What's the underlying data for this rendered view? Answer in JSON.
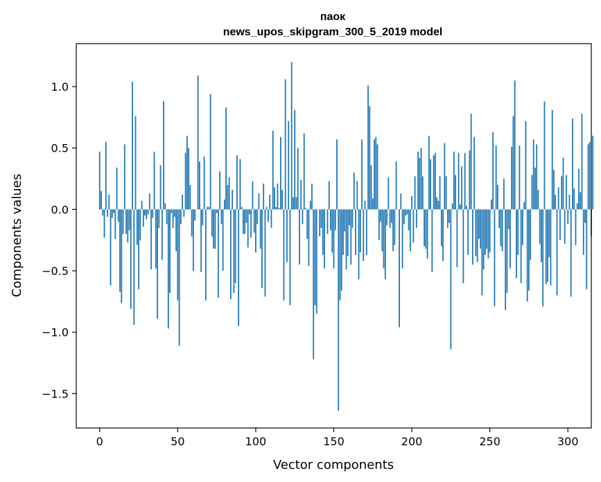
{
  "chart_data": {
    "type": "bar",
    "title": "паок",
    "subtitle": "news_upos_skipgram_300_5_2019 model",
    "xlabel": "Vector components",
    "ylabel": "Components values",
    "xlim": [
      -15,
      315
    ],
    "ylim": [
      -1.78,
      1.35
    ],
    "x_ticks": [
      0,
      50,
      100,
      150,
      200,
      250,
      300
    ],
    "x_tick_labels": [
      "0",
      "50",
      "100",
      "150",
      "200",
      "250",
      "300"
    ],
    "y_ticks": [
      -1.5,
      -1.0,
      -0.5,
      0.0,
      0.5,
      1.0
    ],
    "y_tick_labels": [
      "−1.5",
      "−1.0",
      "−0.5",
      "0.0",
      "0.5",
      "1.0"
    ],
    "grid": false,
    "legend": "none",
    "bar_color": "#1f77b4",
    "values": [
      0.47,
      0.15,
      -0.05,
      -0.23,
      0.55,
      -0.06,
      0.12,
      -0.62,
      -0.07,
      -0.03,
      -0.24,
      0.34,
      -0.1,
      -0.67,
      -0.76,
      -0.2,
      0.53,
      -0.2,
      -0.27,
      -0.17,
      -0.81,
      1.04,
      -0.94,
      0.76,
      -0.29,
      -0.65,
      -0.25,
      0.07,
      -0.14,
      -0.05,
      -0.08,
      -0.04,
      0.13,
      -0.49,
      -0.07,
      0.47,
      -0.48,
      -0.89,
      -0.15,
      0.36,
      -0.41,
      0.88,
      0.05,
      -0.12,
      -0.97,
      -0.68,
      -0.03,
      -0.15,
      -0.06,
      -0.34,
      -0.74,
      -1.11,
      -0.12,
      0.12,
      -0.06,
      0.46,
      0.6,
      0.5,
      0.2,
      -0.22,
      -0.5,
      -0.09,
      0.0,
      1.09,
      0.39,
      -0.51,
      -0.13,
      0.43,
      -0.74,
      0.02,
      0.02,
      0.94,
      -0.22,
      -0.32,
      -0.32,
      -0.03,
      -0.72,
      0.31,
      -0.12,
      -0.5,
      0.08,
      0.83,
      0.2,
      0.26,
      -0.73,
      0.16,
      -0.68,
      -0.6,
      0.44,
      -0.95,
      0.41,
      0.02,
      -0.2,
      -0.2,
      -0.11,
      -0.31,
      -0.04,
      -0.23,
      0.23,
      -0.19,
      -0.35,
      -0.12,
      0.13,
      -0.32,
      -0.64,
      0.21,
      -0.71,
      0.02,
      -0.1,
      0.12,
      -0.15,
      0.64,
      0.18,
      0.02,
      0.21,
      0.01,
      0.59,
      0.16,
      -0.74,
      1.06,
      -0.43,
      0.72,
      -0.78,
      1.2,
      0.1,
      0.81,
      0.1,
      0.5,
      -0.45,
      0.24,
      -0.12,
      0.62,
      0.01,
      -0.24,
      -0.46,
      0.07,
      0.21,
      -1.22,
      -0.78,
      -0.85,
      0.0,
      -0.22,
      -0.15,
      -0.37,
      -0.48,
      0.0,
      -0.2,
      0.23,
      -0.17,
      -0.35,
      -0.48,
      -0.17,
      0.57,
      -1.64,
      -0.74,
      -0.66,
      -0.37,
      -0.18,
      -0.49,
      -0.38,
      -0.13,
      -0.45,
      -0.15,
      0.3,
      -0.37,
      0.23,
      -0.57,
      -0.35,
      0.57,
      -0.42,
      0.07,
      -0.37,
      1.01,
      0.84,
      0.36,
      0.09,
      0.57,
      0.59,
      0.53,
      -0.25,
      -0.1,
      -0.34,
      -0.48,
      -0.57,
      -0.13,
      0.26,
      -0.15,
      -0.11,
      -0.34,
      -0.29,
      0.39,
      0.0,
      -0.96,
      0.13,
      -0.48,
      -0.12,
      -0.05,
      -0.04,
      -0.17,
      -0.34,
      0.11,
      -0.27,
      0.27,
      -0.15,
      0.47,
      0.42,
      0.5,
      0.27,
      -0.3,
      -0.32,
      -0.4,
      0.6,
      0.41,
      -0.51,
      0.44,
      0.46,
      0.1,
      0.07,
      0.27,
      -0.3,
      -0.42,
      0.54,
      0.27,
      -0.15,
      -0.11,
      -1.14,
      0.05,
      0.47,
      0.28,
      -0.47,
      0.46,
      0.04,
      0.35,
      -0.6,
      0.46,
      0.03,
      -0.37,
      0.48,
      0.78,
      -0.45,
      0.59,
      -0.38,
      -0.43,
      -0.24,
      -0.32,
      -0.7,
      -0.49,
      -0.37,
      -0.32,
      -0.4,
      -0.35,
      0.08,
      0.63,
      -0.79,
      0.52,
      0.2,
      -0.15,
      -0.3,
      -0.34,
      0.25,
      -0.82,
      -0.68,
      -0.16,
      -0.48,
      0.51,
      0.76,
      1.05,
      -0.56,
      -0.37,
      0.52,
      -0.6,
      -0.29,
      0.06,
      0.72,
      -0.75,
      -0.66,
      -0.41,
      0.28,
      0.57,
      0.34,
      0.53,
      0.16,
      -0.28,
      -0.43,
      -0.79,
      0.88,
      -0.61,
      -0.59,
      -0.39,
      -0.62,
      0.81,
      0.32,
      0.12,
      -0.7,
      0.18,
      -0.25,
      0.27,
      0.42,
      -0.28,
      0.28,
      -0.12,
      0.12,
      -0.71,
      0.74,
      0.17,
      -0.29,
      0.05,
      0.33,
      0.14,
      0.78,
      -0.37,
      -0.11,
      -0.65,
      0.53,
      0.55,
      -0.22,
      0.6
    ]
  }
}
